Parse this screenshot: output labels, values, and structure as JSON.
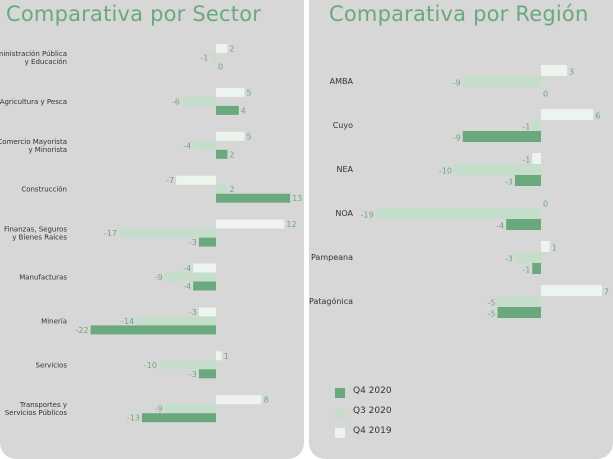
{
  "sector_panel": {
    "title": "Comparativa por Sector"
  },
  "region_panel": {
    "title": "Comparativa por Región"
  },
  "legend": [
    {
      "label": "Q4 2020",
      "color": "#6aa97e"
    },
    {
      "label": "Q3 2020",
      "color": "#c5ddcb"
    },
    {
      "label": "Q4 2019",
      "color": "#edf4ee"
    }
  ],
  "chart_data": [
    {
      "type": "bar",
      "orientation": "horizontal",
      "title": "Comparativa por Sector",
      "categories": [
        [
          "Administración Pública",
          "y Educación"
        ],
        [
          "Agricultura y Pesca"
        ],
        [
          "Comercio Mayorista",
          "y Minorista"
        ],
        [
          "Construcción"
        ],
        [
          "Finanzas, Seguros",
          "y Bienes Raíces"
        ],
        [
          "Manufacturas"
        ],
        [
          "Minería"
        ],
        [
          "Servicios"
        ],
        [
          "Transportes y",
          "Servicios Públicos"
        ]
      ],
      "series": [
        {
          "name": "Q4 2019",
          "values": [
            2,
            5,
            5,
            -7,
            12,
            -4,
            -3,
            1,
            8
          ]
        },
        {
          "name": "Q3 2020",
          "values": [
            -1,
            -6,
            -4,
            2,
            -17,
            -9,
            -14,
            -10,
            -9
          ]
        },
        {
          "name": "Q4 2020",
          "values": [
            0,
            4,
            2,
            13,
            -3,
            -4,
            -22,
            -3,
            -13
          ]
        }
      ]
    },
    {
      "type": "bar",
      "orientation": "horizontal",
      "title": "Comparativa por Región",
      "categories": [
        [
          "AMBA"
        ],
        [
          "Cuyo"
        ],
        [
          "NEA"
        ],
        [
          "NOA"
        ],
        [
          "Pampeana"
        ],
        [
          "Patagónica"
        ]
      ],
      "series": [
        {
          "name": "Q4 2019",
          "values": [
            3,
            6,
            -1,
            0,
            1,
            7
          ]
        },
        {
          "name": "Q3 2020",
          "values": [
            -9,
            -1,
            -10,
            -19,
            -3,
            -5
          ]
        },
        {
          "name": "Q4 2020",
          "values": [
            0,
            -9,
            -3,
            -4,
            -1,
            -5
          ]
        }
      ]
    }
  ]
}
